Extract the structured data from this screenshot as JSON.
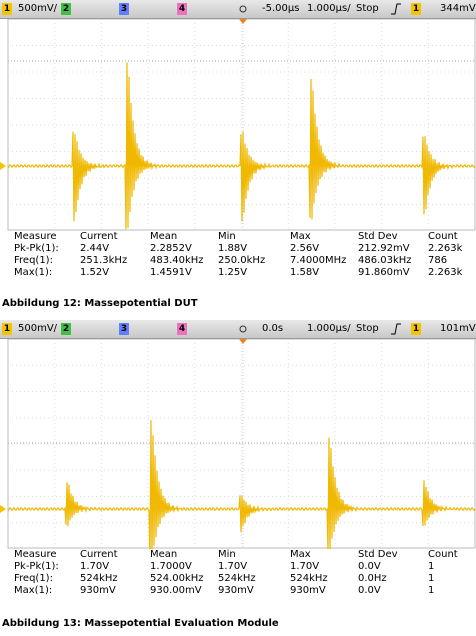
{
  "figures": [
    {
      "header": {
        "ch1": "1",
        "ch1_scale": "500mV/",
        "ch2": "2",
        "ch3": "3",
        "ch4": "4",
        "delay": "-5.00µs",
        "timebase": "1.000µs/",
        "status": "Stop",
        "trigger_source": "1",
        "trigger_level": "344mV"
      },
      "measurements": {
        "columns": [
          "Measure",
          "Current",
          "Mean",
          "Min",
          "Max",
          "Std Dev",
          "Count"
        ],
        "rows": [
          [
            "Pk-Pk(1):",
            "2.44V",
            "2.2852V",
            "1.88V",
            "2.56V",
            "212.92mV",
            "2.263k"
          ],
          [
            "Freq(1):",
            "251.3kHz",
            "483.40kHz",
            "250.0kHz",
            "7.4000MHz",
            "486.03kHz",
            "786"
          ],
          [
            "Max(1):",
            "1.52V",
            "1.4591V",
            "1.25V",
            "1.58V",
            "91.860mV",
            "2.263k"
          ]
        ]
      },
      "caption": "Abbildung 12: Massepotential DUT"
    },
    {
      "header": {
        "ch1": "1",
        "ch1_scale": "500mV/",
        "ch2": "2",
        "ch3": "3",
        "ch4": "4",
        "delay": "0.0s",
        "timebase": "1.000µs/",
        "status": "Stop",
        "trigger_source": "1",
        "trigger_level": "101mV"
      },
      "measurements": {
        "columns": [
          "Measure",
          "Current",
          "Mean",
          "Min",
          "Max",
          "Std Dev",
          "Count"
        ],
        "rows": [
          [
            "Pk-Pk(1):",
            "1.70V",
            "1.7000V",
            "1.70V",
            "1.70V",
            "0.0V",
            "1"
          ],
          [
            "Freq(1):",
            "524kHz",
            "524.00kHz",
            "524kHz",
            "524kHz",
            "0.0Hz",
            "1"
          ],
          [
            "Max(1):",
            "930mV",
            "930.00mV",
            "930mV",
            "930mV",
            "0.0V",
            "1"
          ]
        ]
      },
      "caption": "Abbildung 13: Massepotential Evaluation Module"
    }
  ]
}
